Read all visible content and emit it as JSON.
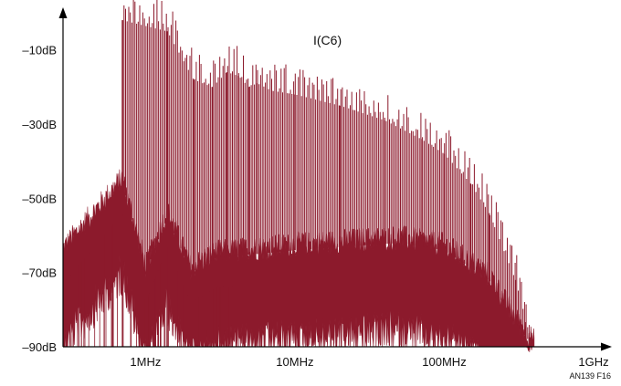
{
  "chart_data": {
    "type": "line",
    "title": "",
    "trace_label": "I(C6)",
    "xlabel": "",
    "ylabel": "",
    "x_scale": "log",
    "x_unit": "Hz",
    "xlim": [
      280000,
      1000000000
    ],
    "ylim": [
      -90,
      0
    ],
    "grid": false,
    "legend": "none",
    "colors": {
      "trace": "#8c1a2c",
      "axis": "#000000"
    },
    "x_ticks": [
      {
        "value": 1000000,
        "label": "1MHz"
      },
      {
        "value": 10000000,
        "label": "10MHz"
      },
      {
        "value": 100000000,
        "label": "100MHz"
      },
      {
        "value": 1000000000,
        "label": "1GHz"
      }
    ],
    "y_ticks": [
      {
        "value": -10,
        "label": "–10dB"
      },
      {
        "value": -30,
        "label": "–30dB"
      },
      {
        "value": -50,
        "label": "–50dB"
      },
      {
        "value": -70,
        "label": "–70dB"
      },
      {
        "value": -90,
        "label": "–90dB"
      }
    ],
    "peaks": [
      {
        "x": 700000,
        "y": -2
      },
      {
        "x": 1400000,
        "y": -5
      },
      {
        "x": 2100000,
        "y": -18
      },
      {
        "x": 2800000,
        "y": -20
      },
      {
        "x": 3500000,
        "y": -16
      },
      {
        "x": 4200000,
        "y": -17
      },
      {
        "x": 4900000,
        "y": -20
      },
      {
        "x": 5600000,
        "y": -19
      },
      {
        "x": 7000000,
        "y": -21
      },
      {
        "x": 10000000,
        "y": -22
      },
      {
        "x": 20000000,
        "y": -25
      },
      {
        "x": 40000000,
        "y": -29
      },
      {
        "x": 70000000,
        "y": -34
      },
      {
        "x": 100000000,
        "y": -38
      },
      {
        "x": 150000000,
        "y": -46
      },
      {
        "x": 200000000,
        "y": -54
      },
      {
        "x": 300000000,
        "y": -72
      },
      {
        "x": 380000000,
        "y": -88
      }
    ],
    "noise_floor": [
      {
        "x": 280000,
        "y": -65
      },
      {
        "x": 700000,
        "y": -46
      },
      {
        "x": 1000000,
        "y": -70
      },
      {
        "x": 1400000,
        "y": -55
      },
      {
        "x": 2000000,
        "y": -70
      },
      {
        "x": 3000000,
        "y": -66
      },
      {
        "x": 10000000,
        "y": -64
      },
      {
        "x": 50000000,
        "y": -62
      },
      {
        "x": 100000000,
        "y": -64
      },
      {
        "x": 200000000,
        "y": -72
      },
      {
        "x": 300000000,
        "y": -84
      },
      {
        "x": 400000000,
        "y": -90
      }
    ],
    "credit": "AN139 F16"
  }
}
